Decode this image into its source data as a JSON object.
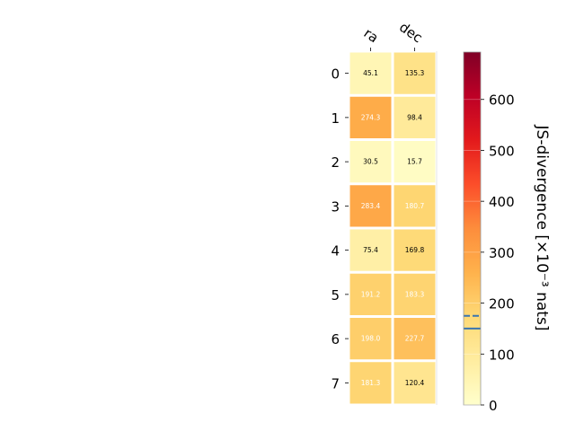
{
  "chart_data": {
    "type": "heatmap",
    "columns": [
      "ra",
      "dec"
    ],
    "rows": [
      "0",
      "1",
      "2",
      "3",
      "4",
      "5",
      "6",
      "7"
    ],
    "values": [
      [
        45.1,
        135.3
      ],
      [
        274.3,
        98.4
      ],
      [
        30.5,
        15.7
      ],
      [
        283.4,
        180.7
      ],
      [
        75.4,
        169.8
      ],
      [
        191.2,
        183.3
      ],
      [
        198.0,
        227.7
      ],
      [
        181.3,
        120.4
      ]
    ],
    "value_labels": [
      [
        "45.1",
        "135.3"
      ],
      [
        "274.3",
        "98.4"
      ],
      [
        "30.5",
        "15.7"
      ],
      [
        "283.4",
        "180.7"
      ],
      [
        "75.4",
        "169.8"
      ],
      [
        "191.2",
        "183.3"
      ],
      [
        "198.0",
        "227.7"
      ],
      [
        "181.3",
        "120.4"
      ]
    ],
    "colorbar": {
      "label": "JS-divergence [×10⁻³ nats]",
      "range": [
        0,
        693
      ],
      "ticks": [
        0,
        100,
        200,
        300,
        400,
        500,
        600
      ],
      "tick_labels": [
        "0",
        "100",
        "200",
        "300",
        "400",
        "500",
        "600"
      ],
      "colormap": "YlOrRd",
      "reference_lines": [
        {
          "value": 175,
          "style": "dashed",
          "color": "#3a75b0"
        },
        {
          "value": 150,
          "style": "solid",
          "color": "#3a75b0"
        }
      ]
    }
  }
}
